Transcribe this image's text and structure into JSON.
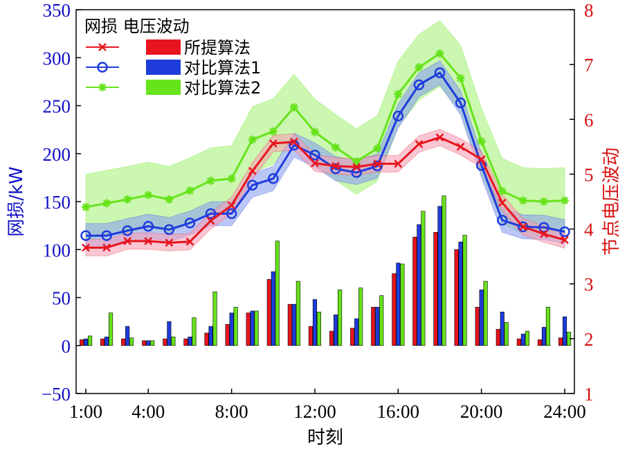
{
  "chart_data": {
    "type": "bar+line",
    "legend_title": "网损 电压波动",
    "legend_placement": "top-left",
    "xlabel": "时刻",
    "ylabel_left": "网损/kW",
    "ylabel_right": "节点电压波动",
    "x": [
      1,
      2,
      3,
      4,
      5,
      6,
      7,
      8,
      9,
      10,
      11,
      12,
      13,
      14,
      15,
      16,
      17,
      18,
      19,
      20,
      21,
      22,
      23,
      24
    ],
    "x_tick_values": [
      1,
      4,
      8,
      12,
      16,
      20,
      24
    ],
    "x_tick_labels": [
      "1:00",
      "4:00",
      "8:00",
      "12:00",
      "16:00",
      "20:00",
      "24:00"
    ],
    "ylim_left": [
      -50,
      350
    ],
    "yticks_left": [
      -50,
      0,
      50,
      100,
      150,
      200,
      250,
      300,
      350
    ],
    "ylim_right": [
      1,
      8
    ],
    "yticks_right": [
      1,
      2,
      3,
      4,
      5,
      6,
      7,
      8
    ],
    "colors": {
      "proposed": "#e8141e",
      "proposed_band": "#f5a0b5",
      "compare1": "#1e3cdc",
      "compare1_band": "#8ca0f0",
      "compare2": "#66e31a",
      "compare2_band": "#a8f27c",
      "left_axis": "#1010c8",
      "right_axis": "#d81010"
    },
    "series": [
      {
        "key": "proposed",
        "name": "所提算法",
        "marker": "x",
        "bar_values": [
          6,
          7,
          7,
          5,
          7,
          7,
          13,
          22,
          34,
          69,
          43,
          20,
          15,
          18,
          40,
          75,
          113,
          118,
          100,
          40,
          17,
          7,
          6,
          8
        ],
        "line_values": [
          3.66,
          3.66,
          3.78,
          3.78,
          3.75,
          3.77,
          4.15,
          4.43,
          5.06,
          5.56,
          5.59,
          5.2,
          5.15,
          5.13,
          5.19,
          5.19,
          5.55,
          5.67,
          5.5,
          5.27,
          4.48,
          4.04,
          3.91,
          3.8
        ],
        "band": 0.15
      },
      {
        "key": "compare1",
        "name": "对比算法1",
        "marker": "o",
        "bar_values": [
          7,
          9,
          20,
          5,
          25,
          9,
          20,
          34,
          36,
          77,
          43,
          48,
          32,
          28,
          40,
          86,
          126,
          145,
          108,
          58,
          35,
          12,
          19,
          30
        ],
        "line_values": [
          3.88,
          3.88,
          3.97,
          4.05,
          3.99,
          4.11,
          4.28,
          4.28,
          4.8,
          4.92,
          5.53,
          5.35,
          5.1,
          5.03,
          5.15,
          6.06,
          6.63,
          6.85,
          6.3,
          5.16,
          4.16,
          4.04,
          4.03,
          3.95
        ],
        "band": 0.22
      },
      {
        "key": "compare2",
        "name": "对比算法2",
        "marker": "*",
        "bar_values": [
          10,
          34,
          8,
          5,
          9,
          29,
          56,
          40,
          36,
          109,
          67,
          35,
          58,
          60,
          52,
          85,
          140,
          156,
          115,
          67,
          24,
          15,
          40,
          14
        ],
        "line_values": [
          4.4,
          4.47,
          4.54,
          4.62,
          4.54,
          4.7,
          4.88,
          4.92,
          5.63,
          5.78,
          6.22,
          5.77,
          5.49,
          5.23,
          5.47,
          6.46,
          6.95,
          7.2,
          6.75,
          5.6,
          4.69,
          4.52,
          4.5,
          4.52
        ],
        "band": 0.6
      }
    ]
  }
}
